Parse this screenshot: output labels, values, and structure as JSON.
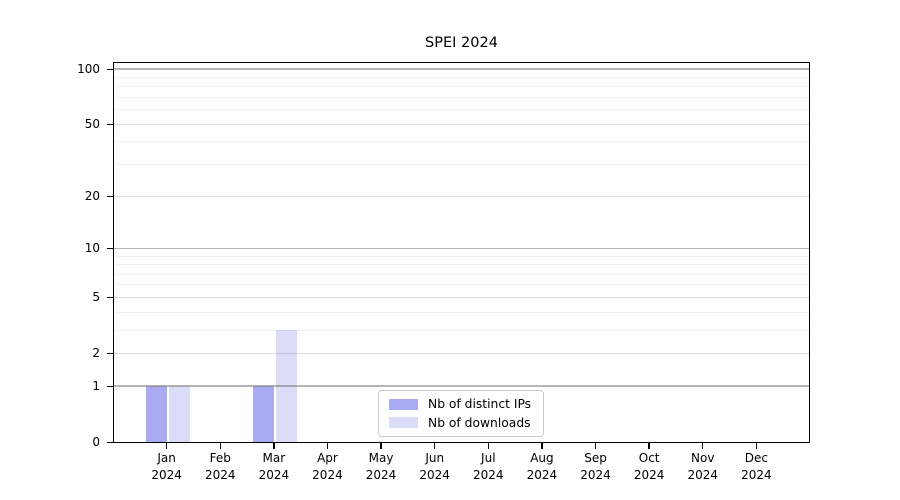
{
  "chart_data": {
    "type": "bar",
    "title": "SPEI 2024",
    "x_axis": {
      "months": [
        "Jan",
        "Feb",
        "Mar",
        "Apr",
        "May",
        "Jun",
        "Jul",
        "Aug",
        "Sep",
        "Oct",
        "Nov",
        "Dec"
      ],
      "year": "2024"
    },
    "series": [
      {
        "name": "Nb of distinct IPs",
        "color": "#a9aaf2",
        "values": [
          1,
          0,
          1,
          0,
          0,
          0,
          0,
          0,
          0,
          0,
          0,
          0
        ]
      },
      {
        "name": "Nb of downloads",
        "color": "#dbdcf8",
        "values": [
          1,
          0,
          3,
          0,
          0,
          0,
          0,
          0,
          0,
          0,
          0,
          0
        ]
      }
    ],
    "y_axis": {
      "scale": "log1p",
      "ticks": [
        0,
        1,
        2,
        5,
        10,
        20,
        50,
        100
      ],
      "decade_gridlines": [
        1,
        10,
        100
      ],
      "minor_gridlines": [
        3,
        4,
        6,
        7,
        8,
        9,
        30,
        40,
        60,
        70,
        80,
        90
      ],
      "ylim": [
        0,
        110
      ]
    },
    "legend": {
      "position": "bottom-center"
    },
    "grid": true,
    "colors": {
      "axis": "#000000",
      "text": "#000000",
      "background": "#ffffff",
      "grid_decade": "rgba(120,120,120,0.55)",
      "grid_major": "rgba(130,130,130,0.28)",
      "grid_minor": "rgba(140,140,140,0.12)",
      "legend_border": "#c9c9c9"
    }
  }
}
